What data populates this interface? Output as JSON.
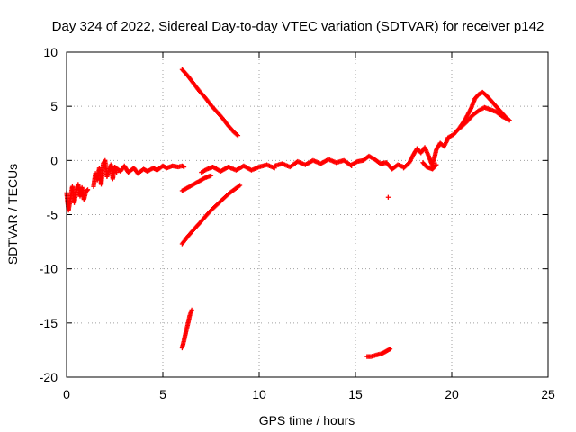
{
  "chart_data": {
    "type": "scatter",
    "title": "Day 324 of 2022, Sidereal Day-to-day VTEC variation (SDTVAR) for receiver p142",
    "xlabel": "GPS time / hours",
    "ylabel": "SDTVAR / TECUs",
    "xlim": [
      0,
      25
    ],
    "ylim": [
      -20,
      10
    ],
    "xticks": [
      0,
      5,
      10,
      15,
      20,
      25
    ],
    "yticks": [
      -20,
      -15,
      -10,
      -5,
      0,
      5,
      10
    ],
    "grid": true,
    "legend": "none",
    "marker_color": "#ff0000",
    "series": [
      {
        "x": [
          0.0,
          0.1,
          0.2,
          0.3,
          0.4,
          0.5,
          0.6,
          0.7,
          0.8,
          0.9,
          1.0,
          1.1
        ],
        "y": [
          -3.0,
          -4.6,
          -3.5,
          -2.4,
          -3.9,
          -2.8,
          -2.2,
          -3.3,
          -2.5,
          -3.6,
          -2.9,
          -2.7
        ]
      },
      {
        "x": [
          1.4,
          1.5,
          1.6,
          1.7,
          1.8,
          1.9,
          2.0,
          2.1,
          2.2,
          2.3,
          2.4,
          2.5,
          2.6
        ],
        "y": [
          -2.4,
          -1.2,
          -1.8,
          -0.7,
          -2.2,
          -0.3,
          0.0,
          -1.5,
          -0.9,
          -0.4,
          -1.7,
          -0.6,
          -1.1
        ]
      },
      {
        "x": [
          2.5,
          2.8,
          3.0,
          3.2,
          3.5,
          3.7,
          4.0,
          4.2,
          4.5,
          4.7,
          5.0,
          5.2,
          5.5,
          5.8,
          6.0,
          6.1
        ],
        "y": [
          -0.6,
          -1.0,
          -0.5,
          -1.1,
          -0.7,
          -1.2,
          -0.8,
          -1.0,
          -0.7,
          -0.9,
          -0.5,
          -0.7,
          -0.5,
          -0.6,
          -0.5,
          -0.6
        ]
      },
      {
        "x": [
          6.0,
          6.3,
          6.6,
          6.9,
          7.2,
          7.5,
          7.8,
          8.1,
          8.4,
          8.7,
          8.9
        ],
        "y": [
          8.4,
          7.8,
          7.1,
          6.4,
          5.8,
          5.1,
          4.5,
          3.9,
          3.2,
          2.6,
          2.3
        ]
      },
      {
        "x": [
          6.0,
          6.3,
          6.6,
          6.9,
          7.2,
          7.5
        ],
        "y": [
          -2.8,
          -2.5,
          -2.2,
          -1.9,
          -1.6,
          -1.4
        ]
      },
      {
        "x": [
          6.0,
          6.3,
          6.6,
          6.9,
          7.2,
          7.5,
          7.8,
          8.1,
          8.4,
          8.7,
          9.0
        ],
        "y": [
          -7.7,
          -7.0,
          -6.4,
          -5.8,
          -5.2,
          -4.6,
          -4.1,
          -3.6,
          -3.1,
          -2.7,
          -2.3
        ]
      },
      {
        "x": [
          6.0,
          6.1,
          6.2,
          6.3,
          6.4,
          6.5
        ],
        "y": [
          -17.3,
          -16.6,
          -15.8,
          -15.1,
          -14.3,
          -13.8
        ]
      },
      {
        "x": [
          7.0,
          7.3,
          7.6,
          8.0,
          8.4,
          8.8,
          9.2,
          9.6,
          10.0,
          10.4,
          10.8
        ],
        "y": [
          -1.1,
          -0.8,
          -0.6,
          -1.0,
          -0.6,
          -0.9,
          -0.5,
          -0.9,
          -0.6,
          -0.4,
          -0.7
        ]
      },
      {
        "x": [
          10.8,
          11.2,
          11.6,
          12.0,
          12.4,
          12.8,
          13.2,
          13.6,
          14.0,
          14.4,
          14.8
        ],
        "y": [
          -0.5,
          -0.3,
          -0.6,
          -0.1,
          -0.4,
          0.0,
          -0.3,
          0.1,
          -0.2,
          0.0,
          -0.5
        ]
      },
      {
        "x": [
          14.8,
          15.1,
          15.4,
          15.7,
          16.0,
          16.3,
          16.6,
          16.9,
          17.2,
          17.5
        ],
        "y": [
          -0.4,
          -0.1,
          0.0,
          0.4,
          0.1,
          -0.3,
          -0.2,
          -0.8,
          -0.4,
          -0.6
        ]
      },
      {
        "x": [
          16.7
        ],
        "y": [
          -3.4
        ]
      },
      {
        "x": [
          15.6,
          15.8,
          16.0,
          16.2,
          16.4,
          16.6,
          16.8
        ],
        "y": [
          -18.1,
          -18.1,
          -18.0,
          -17.9,
          -17.8,
          -17.6,
          -17.4
        ]
      },
      {
        "x": [
          17.5,
          17.8,
          18.0,
          18.2,
          18.4,
          18.6,
          18.8,
          19.0,
          19.2,
          19.4,
          19.6,
          19.8
        ],
        "y": [
          -0.7,
          -0.2,
          0.5,
          1.1,
          0.7,
          1.2,
          0.4,
          -0.5,
          1.0,
          1.6,
          1.3,
          2.0
        ]
      },
      {
        "x": [
          18.5,
          18.7,
          19.0,
          19.2
        ],
        "y": [
          -0.2,
          -0.6,
          -0.8,
          -0.4
        ]
      },
      {
        "x": [
          19.8,
          20.1,
          20.4,
          20.7,
          21.0,
          21.2,
          21.4,
          21.6,
          21.8,
          22.0,
          22.2,
          22.4,
          22.6,
          22.8,
          23.0
        ],
        "y": [
          2.1,
          2.4,
          3.0,
          3.8,
          4.8,
          5.7,
          6.1,
          6.3,
          6.0,
          5.6,
          5.2,
          4.8,
          4.4,
          4.0,
          3.7
        ]
      },
      {
        "x": [
          20.5,
          20.8,
          21.1,
          21.4,
          21.7,
          22.0,
          22.3,
          22.6,
          22.9
        ],
        "y": [
          3.1,
          3.6,
          4.2,
          4.6,
          4.9,
          4.7,
          4.5,
          4.1,
          3.8
        ]
      }
    ]
  }
}
